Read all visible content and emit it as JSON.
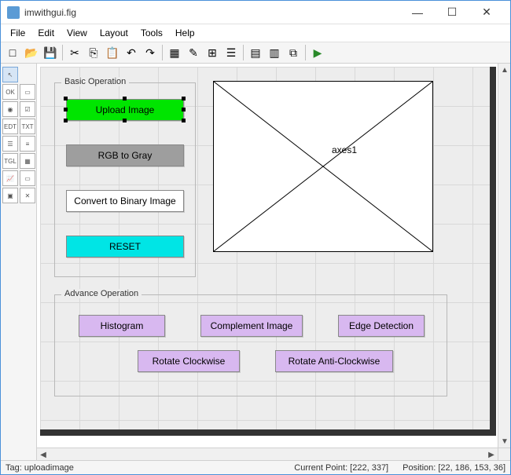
{
  "window": {
    "title": "imwithgui.fig",
    "min_icon": "—",
    "max_icon": "☐",
    "close_icon": "✕"
  },
  "menu": [
    "File",
    "Edit",
    "View",
    "Layout",
    "Tools",
    "Help"
  ],
  "toolbar_icons": [
    "□",
    "📂",
    "💾",
    "|",
    "✂",
    "⎘",
    "📋",
    "↶",
    "↷",
    "|",
    "▦",
    "✎",
    "⊞",
    "☰",
    "|",
    "▤",
    "▥",
    "⧉",
    "|",
    "▶"
  ],
  "palette": [
    {
      "name": "pointer",
      "label": "↖",
      "selected": true
    },
    {
      "name": "ok",
      "label": "OK"
    },
    {
      "name": "slider",
      "label": "▭"
    },
    {
      "name": "radio",
      "label": "◉"
    },
    {
      "name": "check",
      "label": "☑"
    },
    {
      "name": "edit",
      "label": "EDT"
    },
    {
      "name": "text",
      "label": "TXT"
    },
    {
      "name": "popup",
      "label": "☰"
    },
    {
      "name": "list",
      "label": "≡"
    },
    {
      "name": "toggle",
      "label": "TGL"
    },
    {
      "name": "table",
      "label": "▦"
    },
    {
      "name": "axes",
      "label": "📈"
    },
    {
      "name": "panel",
      "label": "▭"
    },
    {
      "name": "bgroup",
      "label": "▣"
    },
    {
      "name": "activex",
      "label": "✕"
    }
  ],
  "basic_panel": {
    "legend": "Basic Operation",
    "buttons": [
      {
        "label": "Upload Image",
        "bg": "#00e500",
        "selected": true
      },
      {
        "label": "RGB to Gray",
        "bg": "#9e9e9e"
      },
      {
        "label": "Convert to Binary Image",
        "bg": "#ffffff"
      },
      {
        "label": "RESET",
        "bg": "#00e5e5"
      }
    ]
  },
  "advance_panel": {
    "legend": "Advance Operation",
    "buttons": [
      {
        "label": "Histogram",
        "bg": "#d8b8f0"
      },
      {
        "label": "Complement Image",
        "bg": "#d8b8f0"
      },
      {
        "label": "Edge Detection",
        "bg": "#d8b8f0"
      },
      {
        "label": "Rotate Clockwise",
        "bg": "#d8b8f0"
      },
      {
        "label": "Rotate Anti-Clockwise",
        "bg": "#d8b8f0"
      }
    ]
  },
  "axes": {
    "label": "axes1"
  },
  "status": {
    "tag": "Tag: uploadimage",
    "current_point": "Current Point:  [222, 337]",
    "position": "Position: [22, 186, 153, 36]"
  },
  "colors": {
    "grid": "#d8d8d8",
    "shadow_border": "#333333"
  }
}
